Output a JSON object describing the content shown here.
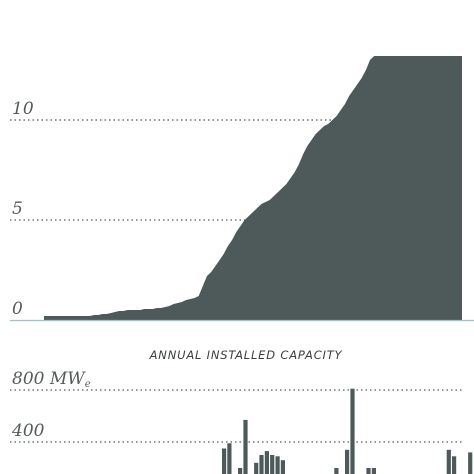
{
  "colors": {
    "fill": "#4e5a5a",
    "grid": "#4e5a5a",
    "baseline": "#9fc0c4",
    "text": "#555a5a"
  },
  "chart_data": [
    {
      "type": "area",
      "title": "",
      "xlabel": "",
      "ylabel": "",
      "ylim": [
        0,
        14
      ],
      "yticks": [
        0,
        5,
        10
      ],
      "grid": true,
      "x": [
        0,
        2,
        4,
        6,
        8,
        10,
        12,
        14,
        16,
        18,
        20,
        22,
        24,
        26,
        28,
        30,
        32,
        34,
        36,
        38,
        40,
        42,
        44,
        46,
        48,
        50,
        52,
        54,
        56,
        58,
        60,
        62,
        64,
        66,
        68,
        70,
        72,
        74,
        76,
        78,
        80,
        82,
        84,
        86,
        88,
        90,
        92,
        94,
        96,
        98,
        100,
        102,
        104,
        106,
        108,
        110,
        112,
        114,
        116,
        118,
        120,
        122,
        124,
        126,
        128,
        130,
        132,
        134,
        136,
        138,
        140,
        142,
        144,
        146,
        148,
        150,
        152,
        154,
        156,
        158,
        160,
        162,
        164,
        166,
        168,
        170,
        172,
        174,
        176,
        178,
        180,
        182,
        184,
        186,
        188,
        190,
        192,
        194,
        196,
        198,
        200
      ],
      "values": [
        0.2,
        0.2,
        0.2,
        0.2,
        0.2,
        0.2,
        0.2,
        0.2,
        0.2,
        0.2,
        0.2,
        0.2,
        0.25,
        0.25,
        0.3,
        0.3,
        0.35,
        0.4,
        0.45,
        0.45,
        0.5,
        0.5,
        0.5,
        0.5,
        0.55,
        0.55,
        0.55,
        0.6,
        0.6,
        0.65,
        0.7,
        0.8,
        0.85,
        0.9,
        1.0,
        1.05,
        1.1,
        1.2,
        1.7,
        2.2,
        2.4,
        2.7,
        3.0,
        3.3,
        3.7,
        4.0,
        4.4,
        4.7,
        5.0,
        5.2,
        5.4,
        5.6,
        5.8,
        5.9,
        6.0,
        6.2,
        6.4,
        6.6,
        6.8,
        7.1,
        7.4,
        7.8,
        8.3,
        8.7,
        9.0,
        9.3,
        9.5,
        9.7,
        9.8,
        10.0,
        10.2,
        10.5,
        10.8,
        11.2,
        11.5,
        11.8,
        12.1,
        12.5,
        13.0,
        13.2,
        13.2,
        13.2,
        13.2,
        13.2,
        13.2,
        13.2,
        13.2,
        13.2,
        13.2,
        13.2,
        13.2,
        13.2,
        13.2,
        13.2,
        13.2,
        13.2,
        13.2,
        13.2,
        13.2,
        13.2,
        13.2
      ]
    },
    {
      "type": "bar",
      "title": "ANNUAL INSTALLED CAPACITY",
      "ylim": [
        0,
        800
      ],
      "yticks": [
        400,
        800
      ],
      "ytick_labels": [
        "400",
        "800 MWe"
      ],
      "grid": true,
      "values": [
        0,
        0,
        0,
        0,
        0,
        0,
        0,
        0,
        0,
        0,
        0,
        0,
        0,
        0,
        0,
        0,
        0,
        0,
        0,
        0,
        0,
        0,
        0,
        0,
        0,
        0,
        0,
        0,
        0,
        0,
        0,
        0,
        0,
        0,
        0,
        0,
        0,
        0,
        0,
        0,
        350,
        390,
        0,
        200,
        570,
        0,
        240,
        300,
        330,
        300,
        290,
        260,
        0,
        0,
        0,
        0,
        0,
        0,
        0,
        0,
        0,
        200,
        120,
        340,
        810,
        0,
        0,
        200,
        200,
        0,
        0,
        0,
        0,
        0,
        0,
        0,
        0,
        120,
        0,
        0,
        0,
        0,
        340,
        290,
        0,
        0,
        320,
        0,
        0,
        0,
        0,
        350,
        400,
        0
      ]
    }
  ],
  "unit_subscript": "e"
}
